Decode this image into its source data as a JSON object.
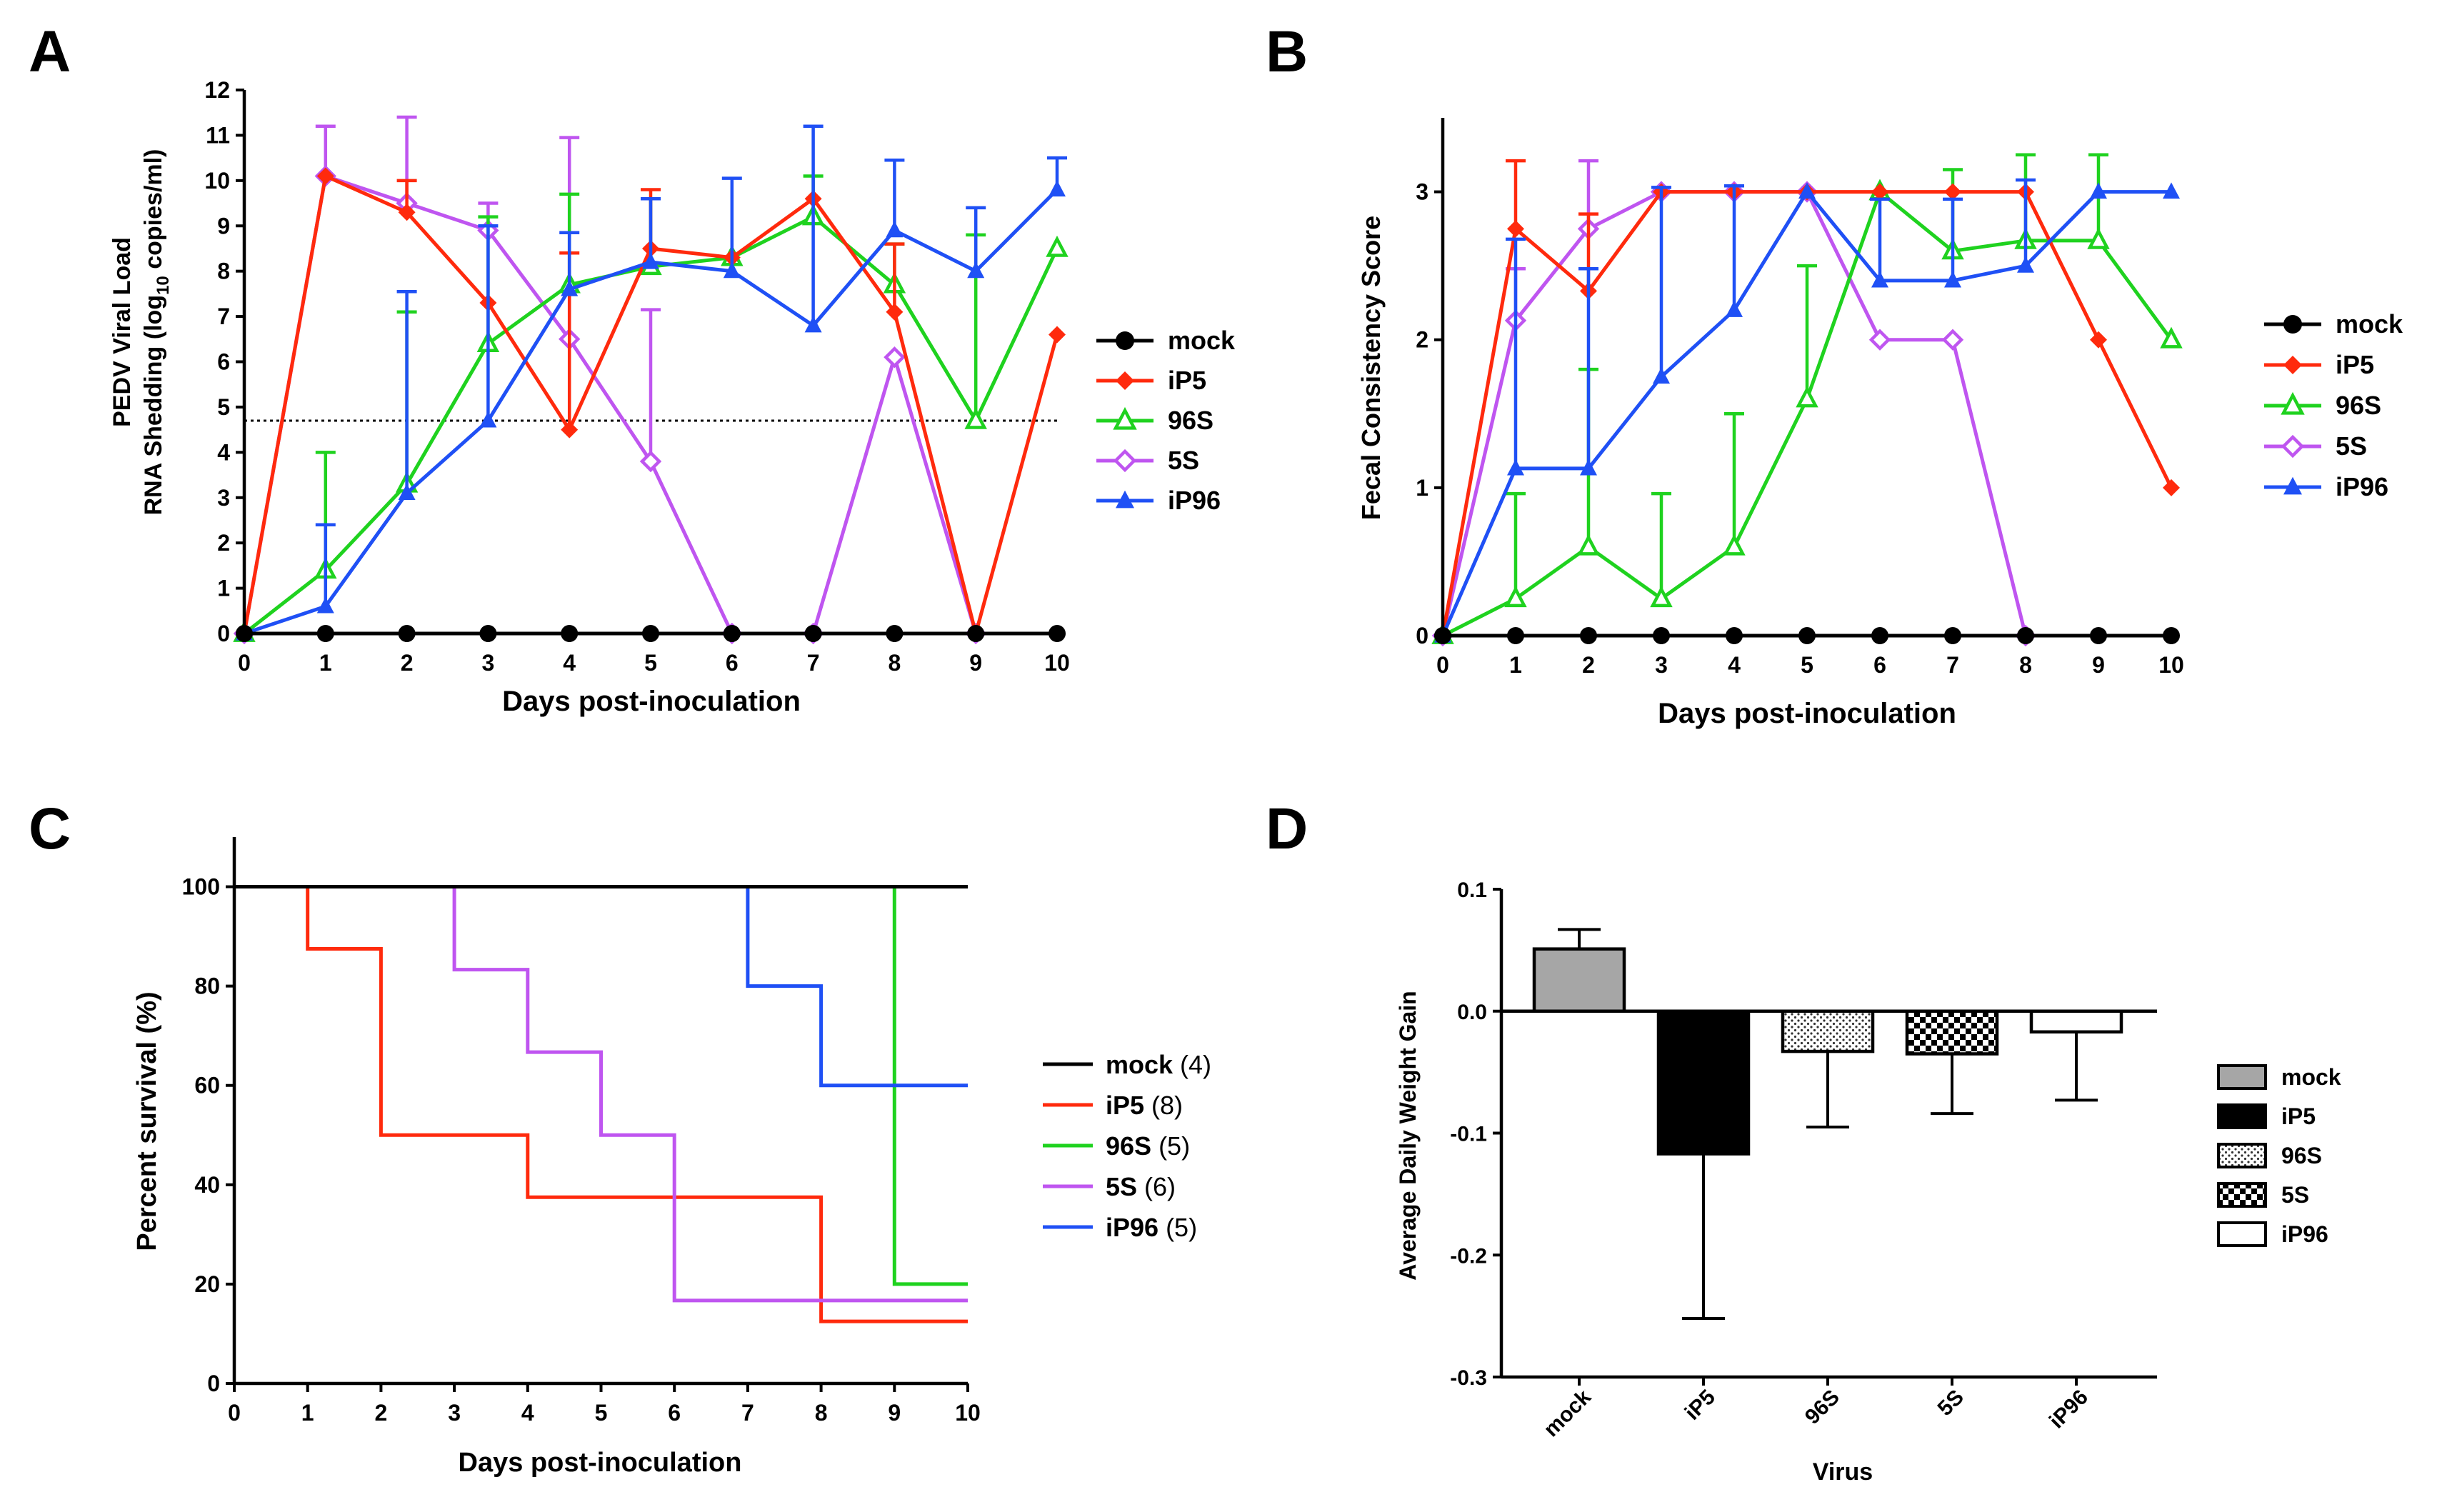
{
  "figure": {
    "colors": {
      "mock": "#000000",
      "iP5": "#ff2a0d",
      "96S": "#1fd21f",
      "5S": "#bf55f0",
      "iP96": "#1f50f5",
      "axis": "#000000",
      "threshold": "#000000"
    },
    "panels": [
      {
        "letter": "A",
        "legend_labels": [
          "mock",
          "iP5",
          "96S",
          "5S",
          "iP96"
        ]
      },
      {
        "letter": "B",
        "legend_labels": [
          "mock",
          "iP5",
          "96S",
          "5S",
          "iP96"
        ]
      },
      {
        "letter": "C",
        "legend_labels": [
          "mock",
          "iP5",
          "96S",
          "5S",
          "iP96"
        ],
        "legend_counts": [
          "(4)",
          "(8)",
          "(5)",
          "(6)",
          "(5)"
        ]
      },
      {
        "letter": "D",
        "legend_labels": [
          "mock",
          "iP5",
          "96S",
          "5S",
          "iP96"
        ]
      }
    ]
  },
  "chart_data": [
    {
      "panel": "A",
      "type": "line",
      "title": "",
      "xlabel": "Days post-inoculation",
      "ylabel_line1": "PEDV Viral Load",
      "ylabel_line2_pre": "RNA Shedding (log",
      "ylabel_line2_sub": "10",
      "ylabel_line2_post": " copies/ml)",
      "xlim": [
        0,
        10
      ],
      "ylim": [
        0,
        12
      ],
      "xticks": [
        0,
        1,
        2,
        3,
        4,
        5,
        6,
        7,
        8,
        9,
        10
      ],
      "yticks": [
        0,
        1,
        2,
        3,
        4,
        5,
        6,
        7,
        8,
        9,
        10,
        11,
        12
      ],
      "threshold": 4.7,
      "x": [
        0,
        1,
        2,
        3,
        4,
        5,
        6,
        7,
        8,
        9,
        10
      ],
      "series": [
        {
          "name": "mock",
          "marker": "circle",
          "values": [
            0,
            0,
            0,
            0,
            0,
            0,
            0,
            0,
            0,
            0,
            0
          ],
          "err": [
            0,
            0,
            0,
            0,
            0,
            0,
            0,
            0,
            0,
            0,
            0
          ]
        },
        {
          "name": "iP5",
          "marker": "diamond",
          "values": [
            0,
            10.1,
            9.3,
            7.3,
            4.5,
            8.5,
            8.3,
            9.6,
            7.1,
            0,
            6.6
          ],
          "err": [
            0,
            0,
            0.7,
            0,
            3.9,
            1.3,
            0,
            0,
            1.5,
            0,
            0
          ]
        },
        {
          "name": "96S",
          "marker": "triangle-open",
          "values": [
            0,
            1.4,
            3.3,
            6.4,
            7.7,
            8.1,
            8.3,
            9.2,
            7.7,
            4.7,
            8.5
          ],
          "err": [
            0,
            2.6,
            3.8,
            2.8,
            2.0,
            1.5,
            0,
            0.9,
            0.9,
            4.1,
            0
          ]
        },
        {
          "name": "5S",
          "marker": "diamond-open",
          "values": [
            0,
            10.1,
            9.5,
            8.9,
            6.5,
            3.8,
            0,
            0,
            6.1,
            0,
            null
          ],
          "err": [
            0,
            1.1,
            1.9,
            0.6,
            4.45,
            3.35,
            0,
            0,
            0,
            0,
            0
          ]
        },
        {
          "name": "iP96",
          "marker": "triangle",
          "values": [
            0,
            0.6,
            3.1,
            4.7,
            7.6,
            8.2,
            8.0,
            6.8,
            8.9,
            8.0,
            9.8
          ],
          "err": [
            0,
            1.8,
            4.45,
            4.3,
            1.25,
            1.4,
            2.05,
            4.4,
            1.55,
            1.4,
            0.7
          ]
        }
      ]
    },
    {
      "panel": "B",
      "type": "line",
      "title": "",
      "xlabel": "Days post-inoculation",
      "ylabel": "Fecal Consistency Score",
      "xlim": [
        0,
        10
      ],
      "ylim": [
        0,
        3.5
      ],
      "xticks": [
        0,
        1,
        2,
        3,
        4,
        5,
        6,
        7,
        8,
        9,
        10
      ],
      "yticks": [
        0,
        1,
        2,
        3
      ],
      "x": [
        0,
        1,
        2,
        3,
        4,
        5,
        6,
        7,
        8,
        9,
        10
      ],
      "series": [
        {
          "name": "mock",
          "marker": "circle",
          "values": [
            0,
            0,
            0,
            0,
            0,
            0,
            0,
            0,
            0,
            0,
            0
          ],
          "err": [
            0,
            0,
            0,
            0,
            0,
            0,
            0,
            0,
            0,
            0,
            0
          ]
        },
        {
          "name": "iP5",
          "marker": "diamond",
          "values": [
            0,
            2.75,
            2.33,
            3,
            3,
            3,
            3,
            3,
            3,
            2,
            1
          ],
          "err": [
            0,
            0.46,
            0.52,
            0,
            0,
            0,
            0,
            0,
            0,
            0,
            0
          ]
        },
        {
          "name": "96S",
          "marker": "triangle-open",
          "values": [
            0,
            0.25,
            0.6,
            0.25,
            0.6,
            1.6,
            3,
            2.6,
            2.67,
            2.67,
            2
          ],
          "err": [
            0,
            0.71,
            1.2,
            0.71,
            0.9,
            0.9,
            0,
            0.55,
            0.58,
            0.58,
            0
          ]
        },
        {
          "name": "5S",
          "marker": "diamond-open",
          "values": [
            0,
            2.13,
            2.75,
            3,
            3,
            3,
            2,
            2,
            0,
            null,
            null
          ],
          "err": [
            0,
            0.35,
            0.46,
            0,
            0,
            0,
            0,
            0,
            0,
            0,
            0
          ]
        },
        {
          "name": "iP96",
          "marker": "triangle",
          "values": [
            0,
            1.13,
            1.13,
            1.75,
            2.2,
            3,
            2.4,
            2.4,
            2.5,
            3,
            3
          ],
          "err": [
            0,
            1.55,
            1.35,
            1.28,
            0.84,
            0,
            0.55,
            0.55,
            0.58,
            0,
            0
          ]
        }
      ]
    },
    {
      "panel": "C",
      "type": "line",
      "subtype": "step",
      "title": "",
      "xlabel": "Days post-inoculation",
      "ylabel": "Percent survival (%)",
      "xlim": [
        0,
        10
      ],
      "ylim": [
        0,
        110
      ],
      "xticks": [
        0,
        1,
        2,
        3,
        4,
        5,
        6,
        7,
        8,
        9,
        10
      ],
      "yticks": [
        0,
        20,
        40,
        60,
        80,
        100
      ],
      "series": [
        {
          "name": "mock",
          "count": "(4)",
          "steps": [
            [
              0,
              100
            ],
            [
              10,
              100
            ]
          ]
        },
        {
          "name": "iP5",
          "count": "(8)",
          "steps": [
            [
              0,
              100
            ],
            [
              1,
              87.5
            ],
            [
              2,
              50
            ],
            [
              4,
              37.5
            ],
            [
              8,
              12.5
            ],
            [
              10,
              12.5
            ]
          ]
        },
        {
          "name": "96S",
          "count": "(5)",
          "steps": [
            [
              0,
              100
            ],
            [
              9,
              60
            ],
            [
              9,
              20
            ],
            [
              10,
              20
            ]
          ]
        },
        {
          "name": "5S",
          "count": "(6)",
          "steps": [
            [
              0,
              100
            ],
            [
              3,
              83.3
            ],
            [
              4,
              66.7
            ],
            [
              5,
              50
            ],
            [
              6,
              16.7
            ],
            [
              10,
              16.7
            ]
          ]
        },
        {
          "name": "iP96",
          "count": "(5)",
          "steps": [
            [
              0,
              100
            ],
            [
              7,
              80
            ],
            [
              8,
              60
            ],
            [
              10,
              60
            ]
          ]
        }
      ]
    },
    {
      "panel": "D",
      "type": "bar",
      "title": "",
      "xlabel": "Virus",
      "ylabel": "Average Daily Weight Gain",
      "ylim": [
        -0.3,
        0.1
      ],
      "yticks": [
        -0.3,
        -0.2,
        -0.1,
        0.0,
        0.1
      ],
      "ytick_labels": [
        "-0.3",
        "-0.2",
        "-0.1",
        "0.0",
        "0.1"
      ],
      "categories": [
        "mock",
        "iP5",
        "96S",
        "5S",
        "iP96"
      ],
      "values": [
        0.051,
        -0.117,
        -0.033,
        -0.035,
        -0.017
      ],
      "err": [
        0.016,
        0.135,
        0.062,
        0.049,
        0.056
      ],
      "fills": [
        "gray",
        "black",
        "dots",
        "checker",
        "white"
      ]
    }
  ]
}
